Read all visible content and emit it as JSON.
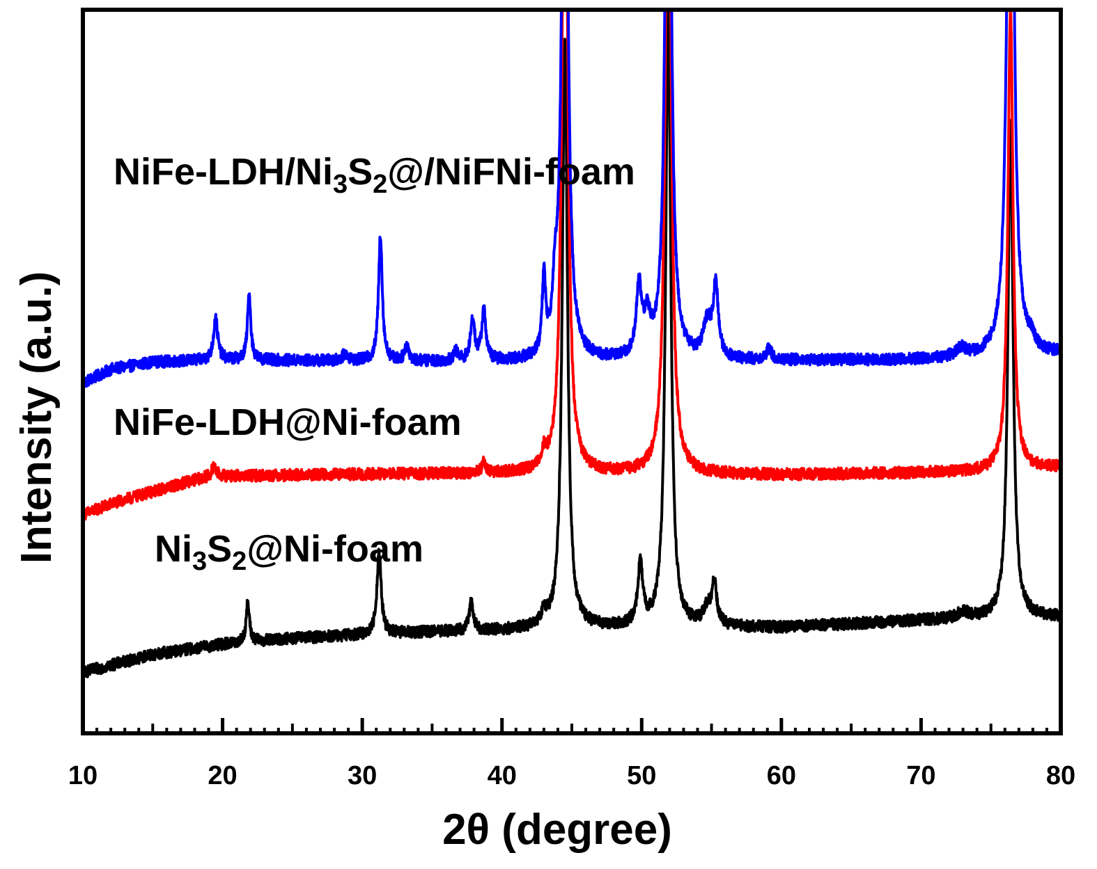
{
  "chart_data": {
    "type": "line",
    "title": "",
    "xlabel": "2θ (degree)",
    "ylabel": "Intensity (a.u.)",
    "xlim": [
      10,
      80
    ],
    "ylim": [
      0,
      100
    ],
    "x_ticks": [
      "10",
      "20",
      "30",
      "40",
      "50",
      "60",
      "70",
      "80"
    ],
    "y_ticks_labeled": false,
    "grid": false,
    "series": [
      {
        "name": "NiFe-LDH/Ni3S2@/NiFNi-foam",
        "label_parts": [
          {
            "t": "NiFe-LDH/Ni"
          },
          {
            "t": "3",
            "sub": true
          },
          {
            "t": "S"
          },
          {
            "t": "2",
            "sub": true
          },
          {
            "t": "@/NiFNi-foam"
          }
        ],
        "color": "#0000ff",
        "baseline_points": [
          [
            10,
            48.4
          ],
          [
            12,
            50.3
          ],
          [
            15,
            51.3
          ],
          [
            20,
            51.6
          ],
          [
            30,
            51.4
          ],
          [
            40,
            51.3
          ],
          [
            50,
            51.4
          ],
          [
            60,
            51.5
          ],
          [
            70,
            51.6
          ],
          [
            76,
            51.8
          ],
          [
            80,
            52.4
          ]
        ],
        "peaks": [
          {
            "x": 19.5,
            "h": 5.8,
            "w": 0.18
          },
          {
            "x": 21.9,
            "h": 9.2,
            "w": 0.14
          },
          {
            "x": 28.8,
            "h": 1.0,
            "w": 0.25
          },
          {
            "x": 31.3,
            "h": 17.6,
            "w": 0.16
          },
          {
            "x": 33.2,
            "h": 2.2,
            "w": 0.18
          },
          {
            "x": 36.7,
            "h": 1.2,
            "w": 0.2
          },
          {
            "x": 37.9,
            "h": 5.6,
            "w": 0.18
          },
          {
            "x": 38.7,
            "h": 6.9,
            "w": 0.18
          },
          {
            "x": 43.0,
            "h": 10.6,
            "w": 0.14
          },
          {
            "x": 43.8,
            "h": 7.0,
            "w": 0.2
          },
          {
            "x": 44.5,
            "h": 110.0,
            "w": 0.22
          },
          {
            "x": 49.8,
            "h": 9.6,
            "w": 0.22
          },
          {
            "x": 50.4,
            "h": 4.8,
            "w": 0.28
          },
          {
            "x": 51.9,
            "h": 110.0,
            "w": 0.22
          },
          {
            "x": 54.7,
            "h": 4.6,
            "w": 0.35
          },
          {
            "x": 55.3,
            "h": 9.6,
            "w": 0.22
          },
          {
            "x": 59.1,
            "h": 1.4,
            "w": 0.25
          },
          {
            "x": 72.9,
            "h": 1.2,
            "w": 0.5
          },
          {
            "x": 76.4,
            "h": 110.0,
            "w": 0.25
          },
          {
            "x": 77.9,
            "h": 1.3,
            "w": 0.3
          }
        ]
      },
      {
        "name": "NiFe-LDH@Ni-foam",
        "label_parts": [
          {
            "t": "NiFe-LDH@Ni-foam"
          }
        ],
        "color": "#ff0000",
        "baseline_points": [
          [
            10,
            30.2
          ],
          [
            12,
            31.7
          ],
          [
            15,
            33.4
          ],
          [
            18,
            35.0
          ],
          [
            19.2,
            35.5
          ],
          [
            22,
            35.6
          ],
          [
            30,
            35.8
          ],
          [
            40,
            35.9
          ],
          [
            50,
            35.8
          ],
          [
            60,
            35.7
          ],
          [
            70,
            36.0
          ],
          [
            76,
            36.2
          ],
          [
            80,
            36.8
          ]
        ],
        "peaks": [
          {
            "x": 19.4,
            "h": 1.3,
            "w": 0.2
          },
          {
            "x": 38.7,
            "h": 1.4,
            "w": 0.18
          },
          {
            "x": 43.0,
            "h": 2.0,
            "w": 0.22
          },
          {
            "x": 44.5,
            "h": 110.0,
            "w": 0.22
          },
          {
            "x": 51.9,
            "h": 110.0,
            "w": 0.22
          },
          {
            "x": 76.4,
            "h": 64.0,
            "w": 0.22
          }
        ]
      },
      {
        "name": "Ni3S2@Ni-foam",
        "label_parts": [
          {
            "t": "Ni"
          },
          {
            "t": "3",
            "sub": true
          },
          {
            "t": "S"
          },
          {
            "t": "2",
            "sub": true
          },
          {
            "t": "@Ni-foam"
          }
        ],
        "color": "#000000",
        "baseline_points": [
          [
            10,
            8.4
          ],
          [
            12,
            9.4
          ],
          [
            15,
            10.9
          ],
          [
            20,
            12.3
          ],
          [
            25,
            13.1
          ],
          [
            30,
            13.6
          ],
          [
            35,
            14.0
          ],
          [
            40,
            14.2
          ],
          [
            45,
            14.5
          ],
          [
            50,
            14.6
          ],
          [
            60,
            14.6
          ],
          [
            70,
            15.6
          ],
          [
            76,
            15.9
          ],
          [
            80,
            16.1
          ]
        ],
        "peaks": [
          {
            "x": 21.8,
            "h": 5.5,
            "w": 0.14
          },
          {
            "x": 31.2,
            "h": 11.4,
            "w": 0.18
          },
          {
            "x": 37.8,
            "h": 4.0,
            "w": 0.18
          },
          {
            "x": 43.0,
            "h": 1.8,
            "w": 0.22
          },
          {
            "x": 44.5,
            "h": 82.0,
            "w": 0.22
          },
          {
            "x": 49.9,
            "h": 8.2,
            "w": 0.22
          },
          {
            "x": 51.9,
            "h": 86.0,
            "w": 0.22
          },
          {
            "x": 54.7,
            "h": 2.2,
            "w": 0.35
          },
          {
            "x": 55.2,
            "h": 5.6,
            "w": 0.22
          },
          {
            "x": 73.0,
            "h": 0.9,
            "w": 0.5
          },
          {
            "x": 76.4,
            "h": 69.0,
            "w": 0.22
          }
        ]
      }
    ]
  }
}
